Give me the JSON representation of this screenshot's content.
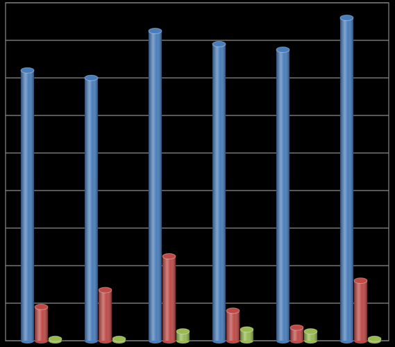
{
  "chart_data": {
    "type": "bar",
    "categories": [
      null,
      null,
      null,
      null,
      null,
      null
    ],
    "series": [
      {
        "color": "#4a7ebb",
        "values": [
          7.2,
          7.0,
          8.25,
          7.9,
          7.75,
          8.6
        ]
      },
      {
        "color": "#be4b48",
        "values": [
          0.9,
          1.35,
          2.25,
          0.8,
          0.35,
          1.6
        ]
      },
      {
        "color": "#98b954",
        "values": [
          0.05,
          0.05,
          0.25,
          0.3,
          0.25,
          0.05
        ]
      }
    ],
    "ylim": [
      0,
      9
    ],
    "yticks": [
      0,
      1,
      2,
      3,
      4,
      5,
      6,
      7,
      8,
      9
    ],
    "grid": true
  }
}
